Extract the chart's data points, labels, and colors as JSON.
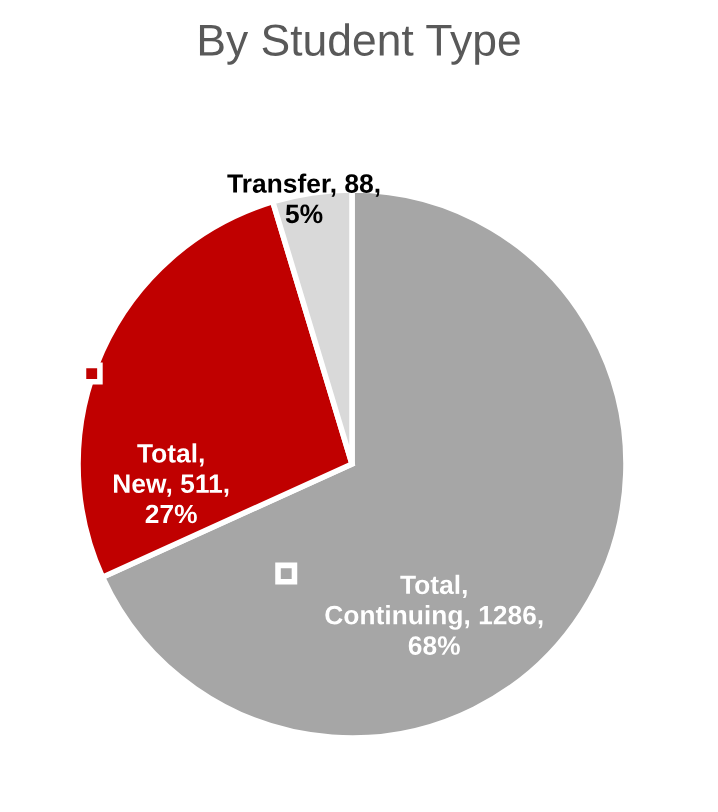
{
  "chart_data": {
    "type": "pie",
    "title": "By Student Type",
    "categories": [
      "Total, Continuing",
      "Total, New",
      "Transfer"
    ],
    "values": [
      1286,
      511,
      88
    ],
    "value_labels": [
      "1286, 68%",
      "511, 27%",
      "88, 5%"
    ],
    "colors": [
      "#a6a6a6",
      "#c00000",
      "#d9d9d9"
    ]
  }
}
